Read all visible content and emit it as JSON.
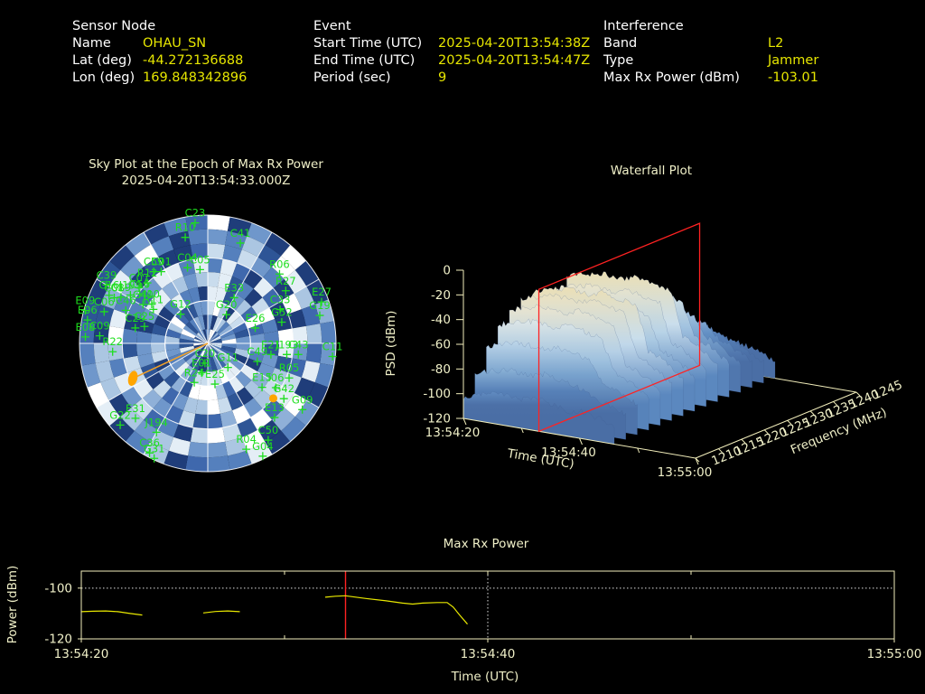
{
  "header": {
    "sensor": {
      "title": "Sensor Node",
      "rows": [
        {
          "label": "Name",
          "value": "OHAU_SN"
        },
        {
          "label": "Lat (deg)",
          "value": "-44.272136688"
        },
        {
          "label": "Lon (deg)",
          "value": "169.848342896"
        }
      ]
    },
    "event": {
      "title": "Event",
      "rows": [
        {
          "label": "Start Time (UTC)",
          "value": "2025-04-20T13:54:38Z"
        },
        {
          "label": "End Time (UTC)",
          "value": "2025-04-20T13:54:47Z"
        },
        {
          "label": "Period (sec)",
          "value": "9"
        }
      ]
    },
    "interference": {
      "title": "Interference",
      "rows": [
        {
          "label": "Band",
          "value": "L2"
        },
        {
          "label": "Type",
          "value": "Jammer"
        },
        {
          "label": "Max Rx Power (dBm)",
          "value": "-103.01"
        }
      ]
    }
  },
  "colors": {
    "background": "#000000",
    "label_text": "#ffffff",
    "value_text": "#e6e600",
    "title_text": "#f0f0c8",
    "axis_line": "#f2eebb",
    "satellite_green": "#1ede1e",
    "trace_yellow": "#e8e800",
    "epoch_red": "#ff2222",
    "marker_orange": "#ffa500",
    "bearing_orange": "#f0a028",
    "grid_white": "#ffffff",
    "dotted_white": "#e0e0e0",
    "sky_palette": [
      "#1f3d7a",
      "#2e5596",
      "#3f68ad",
      "#5580bd",
      "#6f97cb",
      "#8fb0d8",
      "#abc6e2",
      "#c9dced",
      "#e4eef6",
      "#ffffff"
    ]
  },
  "chart_data": [
    {
      "type": "heatmap",
      "subtype": "polar-skyplot",
      "title": "Sky Plot at the Epoch of Max Rx Power",
      "subtitle": "2025-04-20T13:54:33.000Z",
      "elevation_rings_deg": [
        0,
        30,
        60
      ],
      "azimuth_spoke_step_deg": 30,
      "satellites": [
        {
          "id": "C23",
          "az": 354,
          "el": 5
        },
        {
          "id": "R10",
          "az": 348,
          "el": 14
        },
        {
          "id": "C41",
          "az": 18,
          "el": 16
        },
        {
          "id": "C59",
          "az": 323,
          "el": 27
        },
        {
          "id": "C01",
          "az": 327,
          "el": 30
        },
        {
          "id": "C04",
          "az": 345,
          "el": 35
        },
        {
          "id": "C05",
          "az": 354,
          "el": 38
        },
        {
          "id": "R06",
          "az": 46,
          "el": 20
        },
        {
          "id": "C39",
          "az": 300,
          "el": 8
        },
        {
          "id": "R27",
          "az": 56,
          "el": 24
        },
        {
          "id": "E27",
          "az": 70,
          "el": 5
        },
        {
          "id": "C08",
          "az": 296,
          "el": 17
        },
        {
          "id": "C16",
          "az": 296,
          "el": 13
        },
        {
          "id": "J199",
          "az": 302,
          "el": 26
        },
        {
          "id": "C07",
          "az": 309,
          "el": 28
        },
        {
          "id": "C06",
          "az": 287,
          "el": 14
        },
        {
          "id": "J10",
          "az": 305,
          "el": 42
        },
        {
          "id": "R11",
          "az": 302,
          "el": 45
        },
        {
          "id": "G12",
          "az": 317,
          "el": 62
        },
        {
          "id": "E33",
          "az": 30,
          "el": 53
        },
        {
          "id": "G20",
          "az": 33,
          "el": 66
        },
        {
          "id": "C33",
          "az": 65,
          "el": 34
        },
        {
          "id": "G52",
          "az": 74,
          "el": 36
        },
        {
          "id": "G19",
          "az": 76,
          "el": 9
        },
        {
          "id": "E26",
          "az": 72,
          "el": 55
        },
        {
          "id": "E08",
          "az": 273,
          "el": 4
        },
        {
          "id": "C09",
          "az": 274,
          "el": 14
        },
        {
          "id": "R22",
          "az": 265,
          "el": 23
        },
        {
          "id": "C29",
          "az": 282,
          "el": 38
        },
        {
          "id": "C25",
          "az": 285,
          "el": 44
        },
        {
          "id": "E06",
          "az": 281,
          "el": 4
        },
        {
          "id": "E09",
          "az": 285,
          "el": 1
        },
        {
          "id": "C46",
          "az": 292,
          "el": 28
        },
        {
          "id": "C40",
          "az": 301,
          "el": 37
        },
        {
          "id": "C19",
          "az": 298,
          "el": 21
        },
        {
          "id": "C56",
          "az": 306,
          "el": 31
        },
        {
          "id": "R12",
          "az": 315,
          "el": 30
        },
        {
          "id": "E31",
          "az": 224,
          "el": 17
        },
        {
          "id": "G22",
          "az": 227,
          "el": 6
        },
        {
          "id": "J194",
          "az": 210,
          "el": 18
        },
        {
          "id": "C36",
          "az": 208,
          "el": 3
        },
        {
          "id": "G31",
          "az": 205,
          "el": 1
        },
        {
          "id": "C20",
          "az": 188,
          "el": 76
        },
        {
          "id": "E01",
          "az": 192,
          "el": 69
        },
        {
          "id": "G11",
          "az": 140,
          "el": 68
        },
        {
          "id": "R24",
          "az": 199,
          "el": 61
        },
        {
          "id": "E25",
          "az": 170,
          "el": 61
        },
        {
          "id": "C49",
          "az": 110,
          "el": 53
        },
        {
          "id": "E21",
          "az": 100,
          "el": 45
        },
        {
          "id": "J193",
          "az": 98,
          "el": 34
        },
        {
          "id": "C43",
          "az": 97,
          "el": 26
        },
        {
          "id": "C11",
          "az": 96,
          "el": 2
        },
        {
          "id": "R05",
          "az": 113,
          "el": 28
        },
        {
          "id": "E15",
          "az": 129,
          "el": 41
        },
        {
          "id": "I06",
          "az": 123,
          "el": 33
        },
        {
          "id": "G42",
          "az": 126,
          "el": 24
        },
        {
          "id": "G09",
          "az": 125,
          "el": 9
        },
        {
          "id": "E13",
          "az": 138,
          "el": 20
        },
        {
          "id": "C50",
          "az": 148,
          "el": 10
        },
        {
          "id": "R04",
          "az": 160,
          "el": 11
        },
        {
          "id": "G04",
          "az": 154,
          "el": 2
        }
      ],
      "jammer_markers": [
        {
          "az": 245,
          "el": 32
        },
        {
          "az": 130,
          "el": 30
        }
      ],
      "bearing_line": {
        "az": 245,
        "el": 32
      }
    },
    {
      "type": "surface",
      "subtype": "waterfall-3d",
      "title": "Waterfall Plot",
      "xlabel": "Time (UTC)",
      "ylabel": "Frequency (MHz)",
      "zlabel": "PSD (dBm)",
      "time_ticks": [
        {
          "s": 0,
          "label": "13:54:20"
        },
        {
          "s": 20,
          "label": "13:54:40"
        },
        {
          "s": 40,
          "label": "13:55:00"
        }
      ],
      "time_minor_ticks_s": [
        10,
        30
      ],
      "time_range_s": [
        0,
        40
      ],
      "freq_ticks_mhz": [
        1210,
        1215,
        1220,
        1225,
        1230,
        1235,
        1240,
        1245
      ],
      "freq_range_mhz": [
        1210,
        1245
      ],
      "psd_ticks_dbm": [
        0,
        -20,
        -40,
        -60,
        -80,
        -100,
        -120
      ],
      "psd_range_dbm": [
        -120,
        0
      ],
      "epoch_plane_s": 13,
      "epoch_plane_top_dbm": -5,
      "times_s": [
        0,
        2,
        4,
        6,
        8,
        10,
        12,
        14,
        16,
        18,
        20,
        22,
        24,
        26
      ],
      "freqs_mhz": [
        1210,
        1212.5,
        1215,
        1217.5,
        1220,
        1222.5,
        1225,
        1227.5,
        1230,
        1232.5,
        1235,
        1237.5,
        1240,
        1242.5,
        1245
      ],
      "psd_grid": [
        [
          -103,
          -88,
          -70,
          -56,
          -48,
          -43,
          -41,
          -52,
          -46,
          -40,
          -53,
          -68,
          -78,
          -88,
          -98
        ],
        [
          -99,
          -84,
          -66,
          -52,
          -44,
          -39,
          -37,
          -48,
          -42,
          -36,
          -49,
          -64,
          -74,
          -84,
          -94
        ],
        [
          -97,
          -82,
          -64,
          -50,
          -42,
          -37,
          -35,
          -46,
          -40,
          -34,
          -47,
          -62,
          -72,
          -82,
          -92
        ],
        [
          -95,
          -80,
          -62,
          -48,
          -40,
          -35,
          -33,
          -44,
          -38,
          -32,
          -45,
          -60,
          -70,
          -80,
          -90
        ],
        [
          -96,
          -81,
          -63,
          -49,
          -41,
          -36,
          -34,
          -45,
          -39,
          -33,
          -46,
          -61,
          -71,
          -81,
          -91
        ],
        [
          -97,
          -82,
          -64,
          -50,
          -42,
          -37,
          -35,
          -46,
          -40,
          -34,
          -47,
          -62,
          -72,
          -82,
          -92
        ],
        [
          -93,
          -78,
          -60,
          -46,
          -38,
          -33,
          -31,
          -42,
          -36,
          -30,
          -43,
          -58,
          -68,
          -78,
          -88
        ],
        [
          -95,
          -80,
          -62,
          -48,
          -40,
          -35,
          -33,
          -44,
          -38,
          -32,
          -45,
          -60,
          -70,
          -80,
          -90
        ],
        [
          -97,
          -82,
          -64,
          -50,
          -42,
          -37,
          -35,
          -46,
          -40,
          -34,
          -47,
          -62,
          -72,
          -82,
          -92
        ],
        [
          -100,
          -85,
          -67,
          -53,
          -45,
          -40,
          -38,
          -49,
          -43,
          -37,
          -50,
          -65,
          -75,
          -85,
          -95
        ],
        [
          -98,
          -90,
          -82,
          -78,
          -75,
          -73,
          -72,
          -75,
          -73,
          -72,
          -76,
          -80,
          -84,
          -90,
          -96
        ],
        [
          -100,
          -93,
          -86,
          -82,
          -79,
          -77,
          -76,
          -79,
          -77,
          -76,
          -80,
          -84,
          -88,
          -93,
          -99
        ],
        [
          -102,
          -96,
          -90,
          -87,
          -85,
          -83,
          -83,
          -85,
          -84,
          -83,
          -86,
          -90,
          -94,
          -98,
          -102
        ],
        [
          -105,
          -100,
          -96,
          -93,
          -92,
          -91,
          -91,
          -92,
          -91,
          -91,
          -93,
          -96,
          -99,
          -103,
          -106
        ]
      ]
    },
    {
      "type": "line",
      "subtype": "time-series",
      "title": "Max Rx Power",
      "xlabel": "Time (UTC)",
      "ylabel": "Power (dBm)",
      "x_ticks": [
        {
          "s": 0,
          "label": "13:54:20"
        },
        {
          "s": 20,
          "label": "13:54:40"
        },
        {
          "s": 40,
          "label": "13:55:00"
        }
      ],
      "x_minor_ticks_s": [
        10,
        30
      ],
      "x_range_s": [
        0,
        40
      ],
      "y_ticks_dbm": [
        -100,
        -120
      ],
      "ylim_dbm": [
        -120,
        -93.3
      ],
      "threshold_dbm": -100,
      "epoch_line_s": 13,
      "event_marker_line_s": 20,
      "max_power_dbm": -103.01,
      "segments": [
        [
          [
            0,
            -109.3
          ],
          [
            0.6,
            -109.1
          ],
          [
            1.2,
            -109.0
          ],
          [
            1.8,
            -109.3
          ],
          [
            2.4,
            -110.0
          ],
          [
            3.0,
            -110.6
          ]
        ],
        [
          [
            6.0,
            -109.8
          ],
          [
            6.6,
            -109.2
          ],
          [
            7.2,
            -109.0
          ],
          [
            7.8,
            -109.3
          ]
        ],
        [
          [
            12.0,
            -103.6
          ],
          [
            12.5,
            -103.2
          ],
          [
            13.0,
            -103.01
          ],
          [
            14.0,
            -104.1
          ],
          [
            15.0,
            -105.0
          ],
          [
            15.8,
            -105.9
          ],
          [
            16.3,
            -106.3
          ],
          [
            16.8,
            -105.9
          ],
          [
            17.5,
            -105.7
          ],
          [
            18.0,
            -105.7
          ],
          [
            18.3,
            -107.5
          ],
          [
            18.6,
            -110.5
          ],
          [
            19.0,
            -114.2
          ]
        ]
      ]
    }
  ]
}
